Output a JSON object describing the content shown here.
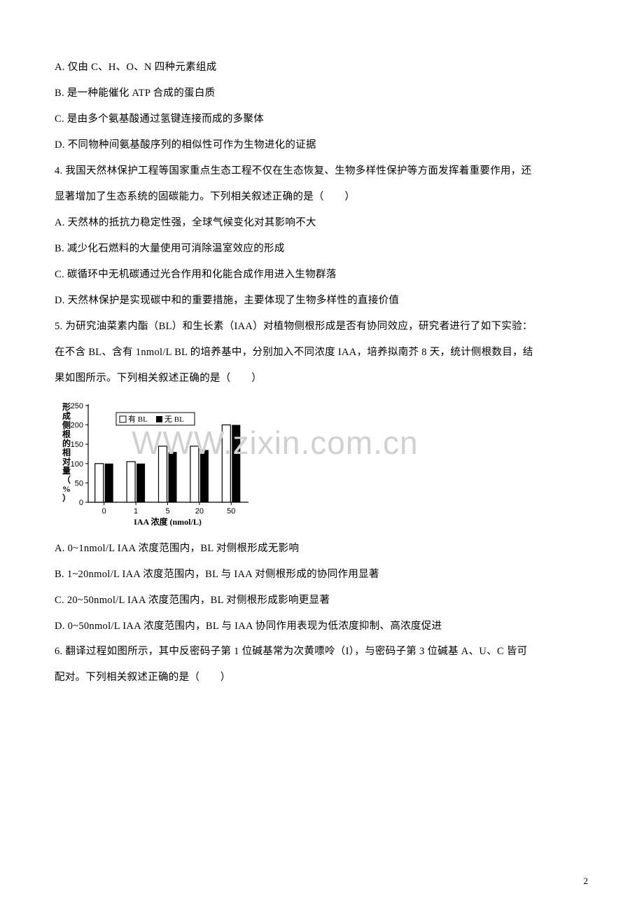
{
  "lines": {
    "a1": "A. 仅由 C、H、O、N 四种元素组成",
    "a2": "B. 是一种能催化 ATP 合成的蛋白质",
    "a3": "C. 是由多个氨基酸通过氢键连接而成的多聚体",
    "a4": "D. 不同物种间氨基酸序列的相似性可作为生物进化的证据",
    "q4": "4. 我国天然林保护工程等国家重点生态工程不仅在生态恢复、生物多样性保护等方面发挥着重要作用，还",
    "q4b": "显著增加了生态系统的固碳能力。下列相关叙述正确的是（　　）",
    "b1": "A. 天然林的抵抗力稳定性强，全球气候变化对其影响不大",
    "b2": "B. 减少化石燃料的大量使用可消除温室效应的形成",
    "b3": "C. 碳循环中无机碳通过光合作用和化能合成作用进入生物群落",
    "b4": "D. 天然林保护是实现碳中和的重要措施，主要体现了生物多样性的直接价值",
    "q5": "5. 为研究油菜素内酯（BL）和生长素（IAA）对植物侧根形成是否有协同效应，研究者进行了如下实验：",
    "q5b": "在不含 BL、含有 1nmol/L BL 的培养基中，分别加入不同浓度 IAA，培养拟南芥 8 天，统计侧根数目，结",
    "q5c": "果如图所示。下列相关叙述正确的是（　　）",
    "c1": "A. 0~1nmol/L IAA 浓度范围内，BL 对侧根形成无影响",
    "c2": "B. 1~20nmol/L IAA 浓度范围内，BL 与 IAA 对侧根形成的协同作用显著",
    "c3": "C. 20~50nmol/L IAA 浓度范围内，BL 对侧根形成影响更显著",
    "c4": "D. 0~50nmol/L IAA 浓度范围内，BL 与 IAA 协同作用表现为低浓度抑制、高浓度促进",
    "q6": "6. 翻译过程如图所示，其中反密码子第 1 位碱基常为次黄嘌呤（I），与密码子第 3 位碱基 A、U、C 皆可",
    "q6b": "配对。下列相关叙述正确的是（　　）"
  },
  "chart": {
    "type": "bar",
    "y_label": "形成侧根的相对量（%）",
    "x_label": "IAA 浓度 (nmol/L)",
    "legend": {
      "with_bl": "有 BL",
      "without_bl": "无 BL"
    },
    "y_ticks": [
      "0",
      "50",
      "100",
      "150",
      "200",
      "250"
    ],
    "x_ticks": [
      "0",
      "1",
      "5",
      "20",
      "50"
    ],
    "ylim": [
      0,
      250
    ],
    "series": {
      "with_bl": [
        100,
        105,
        145,
        145,
        200
      ],
      "without_bl": [
        100,
        100,
        130,
        135,
        200
      ]
    },
    "colors": {
      "with_bl_fill": "#ffffff",
      "with_bl_stroke": "#000000",
      "without_bl_fill": "#000000",
      "axis": "#000000",
      "text": "#000000"
    },
    "font_size_axis": 11,
    "font_size_label": 12
  },
  "watermark": "WWW.zixin.com.cn",
  "page_number": "2"
}
